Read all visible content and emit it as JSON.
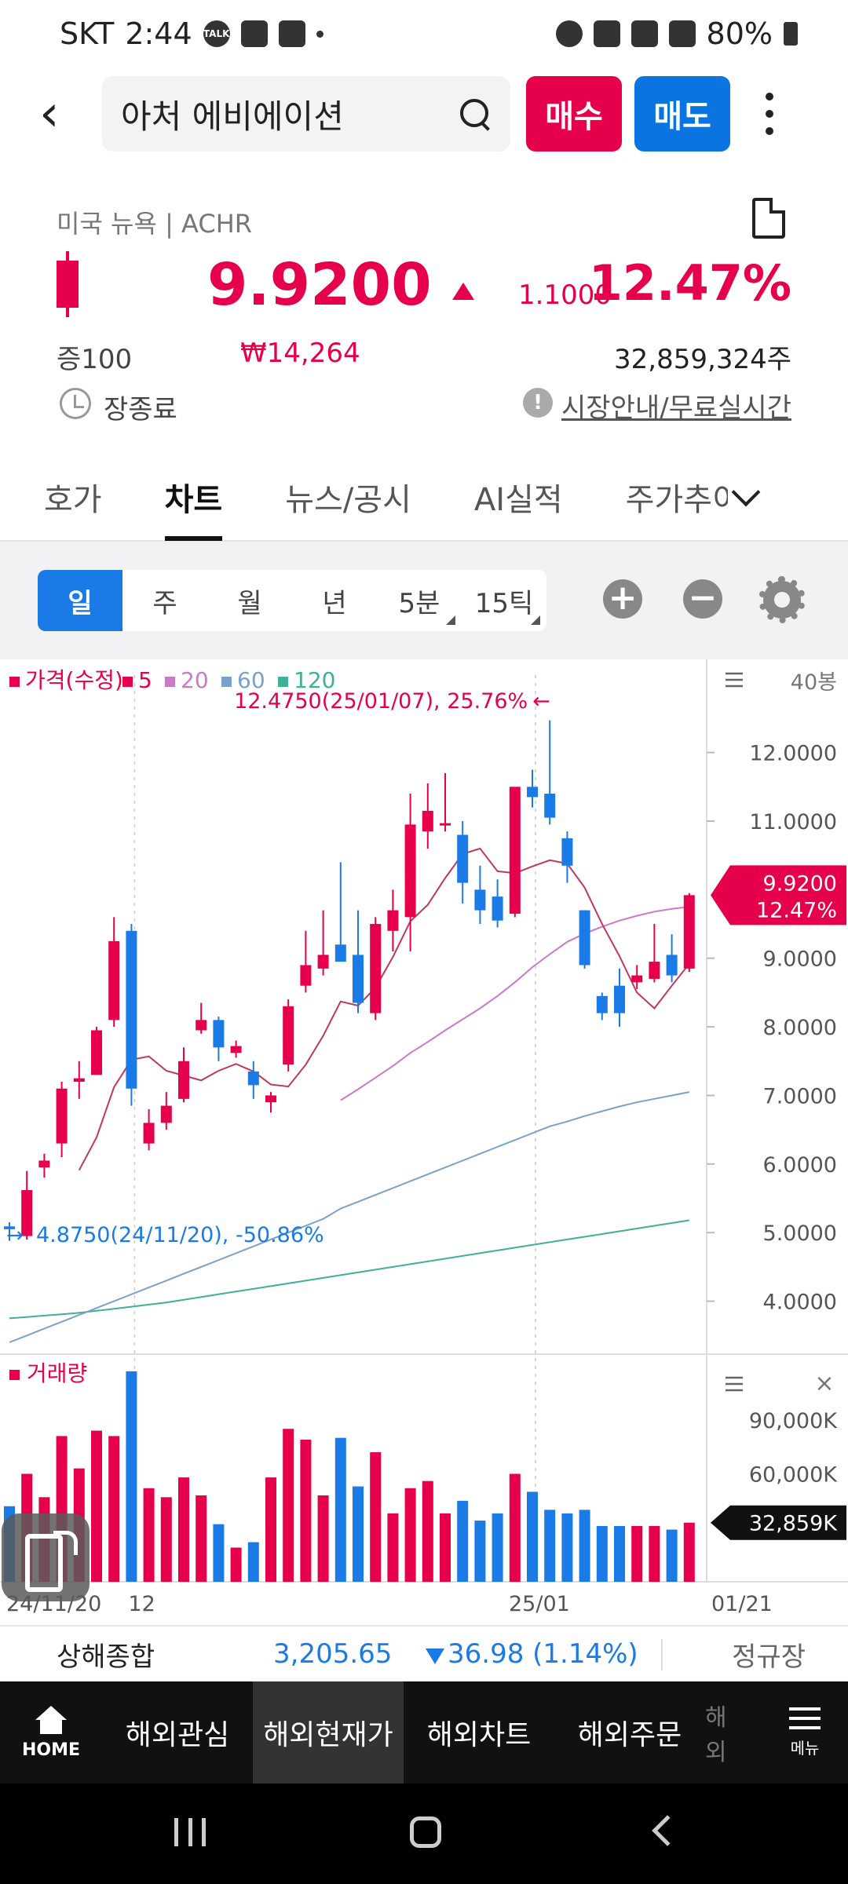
{
  "status_bar": {
    "carrier": "SKT",
    "time": "2:44",
    "talk_badge": "TALK",
    "battery": "80%"
  },
  "header": {
    "search_value": "아처 에비에이션",
    "buy_label": "매수",
    "sell_label": "매도"
  },
  "quote": {
    "exchange": "미국 뉴욕 | ACHR",
    "price": "9.9200",
    "change": "1.1000",
    "change_pct": "12.47%",
    "margin": "증100",
    "price_krw": "₩14,264",
    "volume": "32,859,324주",
    "session": "장종료",
    "info_link": "시장안내/무료실시간",
    "up_color": "#e6004c",
    "down_color": "#1a7be6"
  },
  "tabs": [
    {
      "label": "호가"
    },
    {
      "label": "차트",
      "active": true
    },
    {
      "label": "뉴스/공시"
    },
    {
      "label": "AI실적"
    },
    {
      "label": "주가추이"
    }
  ],
  "periods": [
    {
      "label": "일",
      "active": true
    },
    {
      "label": "주"
    },
    {
      "label": "월"
    },
    {
      "label": "년"
    },
    {
      "label": "5분"
    },
    {
      "label": "15틱"
    }
  ],
  "zoom": {
    "in": "+",
    "out": "−"
  },
  "chart_legend": {
    "price_label": "가격(수정)",
    "ma5": "5",
    "ma20": "20",
    "ma60": "60",
    "ma120": "120",
    "bars_label": "40봉",
    "volume_label": "거래량"
  },
  "chart_annotations": {
    "high": "12.4750(25/01/07), 25.76%",
    "low": "4.8750(24/11/20), -50.86%",
    "current_price": "9.9200",
    "current_pct": "12.47%",
    "current_volume": "32,859K"
  },
  "chart_data": {
    "type": "candlestick",
    "title": "",
    "price_ticks": [
      12,
      11,
      9,
      8,
      7,
      6,
      5,
      4
    ],
    "price_tick_labels": [
      "12.0000",
      "11.0000",
      "9.0000",
      "8.0000",
      "7.0000",
      "6.0000",
      "5.0000",
      "4.0000"
    ],
    "price_range": [
      3.4,
      12.9
    ],
    "volume_ticks": [
      90000,
      60000
    ],
    "volume_tick_labels": [
      "90,000K",
      "60,000K"
    ],
    "volume_range": [
      0,
      120000
    ],
    "x_labels": [
      "24/11/20",
      "12",
      "25/01",
      "01/21"
    ],
    "candles": [
      {
        "o": 5.09,
        "h": 5.15,
        "l": 4.88,
        "c": 5.05,
        "v": 42000
      },
      {
        "o": 4.95,
        "h": 5.9,
        "l": 4.9,
        "c": 5.62,
        "v": 60000
      },
      {
        "o": 5.95,
        "h": 6.15,
        "l": 5.8,
        "c": 6.05,
        "v": 47000
      },
      {
        "o": 6.3,
        "h": 7.2,
        "l": 6.1,
        "c": 7.1,
        "v": 81000
      },
      {
        "o": 7.2,
        "h": 7.5,
        "l": 6.95,
        "c": 7.25,
        "v": 63000
      },
      {
        "o": 7.3,
        "h": 8.0,
        "l": 7.3,
        "c": 7.95,
        "v": 84000
      },
      {
        "o": 8.1,
        "h": 9.6,
        "l": 8.0,
        "c": 9.25,
        "v": 81000
      },
      {
        "o": 9.4,
        "h": 9.5,
        "l": 6.85,
        "c": 7.1,
        "v": 117000
      },
      {
        "o": 6.3,
        "h": 6.8,
        "l": 6.2,
        "c": 6.6,
        "v": 52000
      },
      {
        "o": 6.6,
        "h": 7.05,
        "l": 6.5,
        "c": 6.85,
        "v": 47000
      },
      {
        "o": 6.95,
        "h": 7.7,
        "l": 6.9,
        "c": 7.5,
        "v": 58000
      },
      {
        "o": 7.95,
        "h": 8.35,
        "l": 7.9,
        "c": 8.1,
        "v": 48000
      },
      {
        "o": 8.1,
        "h": 8.15,
        "l": 7.5,
        "c": 7.7,
        "v": 32000
      },
      {
        "o": 7.62,
        "h": 7.8,
        "l": 7.55,
        "c": 7.72,
        "v": 19000
      },
      {
        "o": 7.35,
        "h": 7.5,
        "l": 6.95,
        "c": 7.15,
        "v": 22000
      },
      {
        "o": 6.9,
        "h": 7.05,
        "l": 6.75,
        "c": 7.0,
        "v": 58000
      },
      {
        "o": 7.45,
        "h": 8.4,
        "l": 7.35,
        "c": 8.3,
        "v": 85000
      },
      {
        "o": 8.6,
        "h": 9.4,
        "l": 8.5,
        "c": 8.9,
        "v": 79000
      },
      {
        "o": 8.85,
        "h": 9.7,
        "l": 8.75,
        "c": 9.05,
        "v": 48000
      },
      {
        "o": 9.2,
        "h": 10.4,
        "l": 8.95,
        "c": 8.95,
        "v": 80000
      },
      {
        "o": 9.05,
        "h": 9.7,
        "l": 8.2,
        "c": 8.35,
        "v": 53000
      },
      {
        "o": 8.2,
        "h": 9.6,
        "l": 8.1,
        "c": 9.5,
        "v": 72000
      },
      {
        "o": 9.4,
        "h": 10.0,
        "l": 9.1,
        "c": 9.7,
        "v": 38000
      },
      {
        "o": 9.6,
        "h": 11.4,
        "l": 9.1,
        "c": 10.95,
        "v": 52000
      },
      {
        "o": 10.85,
        "h": 11.55,
        "l": 10.6,
        "c": 11.15,
        "v": 56000
      },
      {
        "o": 10.95,
        "h": 11.7,
        "l": 10.85,
        "c": 10.97,
        "v": 38000
      },
      {
        "o": 10.8,
        "h": 11.0,
        "l": 9.8,
        "c": 10.1,
        "v": 45000
      },
      {
        "o": 10.0,
        "h": 10.35,
        "l": 9.5,
        "c": 9.7,
        "v": 34000
      },
      {
        "o": 9.9,
        "h": 10.15,
        "l": 9.45,
        "c": 9.55,
        "v": 38000
      },
      {
        "o": 9.65,
        "h": 11.45,
        "l": 9.6,
        "c": 11.5,
        "v": 60000
      },
      {
        "o": 11.5,
        "h": 11.75,
        "l": 11.2,
        "c": 11.35,
        "v": 50000
      },
      {
        "o": 11.4,
        "h": 12.47,
        "l": 10.95,
        "c": 11.05,
        "v": 40000
      },
      {
        "o": 10.75,
        "h": 10.85,
        "l": 10.1,
        "c": 10.35,
        "v": 38000
      },
      {
        "o": 9.7,
        "h": 9.7,
        "l": 8.85,
        "c": 8.9,
        "v": 40000
      },
      {
        "o": 8.45,
        "h": 8.5,
        "l": 8.1,
        "c": 8.2,
        "v": 31000
      },
      {
        "o": 8.6,
        "h": 8.85,
        "l": 8.0,
        "c": 8.2,
        "v": 31000
      },
      {
        "o": 8.65,
        "h": 8.9,
        "l": 8.55,
        "c": 8.75,
        "v": 31000
      },
      {
        "o": 8.7,
        "h": 9.5,
        "l": 8.65,
        "c": 8.95,
        "v": 31000
      },
      {
        "o": 9.05,
        "h": 9.35,
        "l": 8.65,
        "c": 8.75,
        "v": 29000
      },
      {
        "o": 8.85,
        "h": 9.95,
        "l": 8.8,
        "c": 9.92,
        "v": 32859
      }
    ],
    "ma5": [
      null,
      null,
      null,
      null,
      5.91,
      6.39,
      7.12,
      7.52,
      7.57,
      7.36,
      7.29,
      7.22,
      7.36,
      7.46,
      7.35,
      7.16,
      7.13,
      7.45,
      7.87,
      8.37,
      8.31,
      8.57,
      9.02,
      9.54,
      9.78,
      10.17,
      10.52,
      10.6,
      10.27,
      10.24,
      10.34,
      10.43,
      10.38,
      10.03,
      9.5,
      9.03,
      8.5,
      8.27,
      8.6,
      8.92
    ],
    "ma20": [
      null,
      null,
      null,
      null,
      null,
      null,
      null,
      null,
      null,
      null,
      null,
      null,
      null,
      null,
      null,
      null,
      null,
      null,
      null,
      6.93,
      7.09,
      7.26,
      7.43,
      7.62,
      7.78,
      7.95,
      8.11,
      8.27,
      8.45,
      8.65,
      8.87,
      9.06,
      9.24,
      9.36,
      9.46,
      9.55,
      9.62,
      9.68,
      9.72,
      9.75
    ],
    "ma60": [
      3.4,
      3.5,
      3.6,
      3.7,
      3.8,
      3.9,
      4.0,
      4.1,
      4.2,
      4.3,
      4.4,
      4.5,
      4.6,
      4.7,
      4.8,
      4.9,
      5.0,
      5.1,
      5.2,
      5.35,
      5.45,
      5.55,
      5.65,
      5.75,
      5.85,
      5.95,
      6.05,
      6.15,
      6.25,
      6.35,
      6.45,
      6.55,
      6.62,
      6.7,
      6.77,
      6.84,
      6.9,
      6.95,
      7.0,
      7.05
    ],
    "ma120": [
      3.75,
      3.77,
      3.79,
      3.81,
      3.83,
      3.86,
      3.89,
      3.92,
      3.95,
      3.98,
      4.02,
      4.06,
      4.1,
      4.14,
      4.18,
      4.22,
      4.26,
      4.3,
      4.34,
      4.38,
      4.42,
      4.46,
      4.5,
      4.54,
      4.58,
      4.62,
      4.66,
      4.7,
      4.74,
      4.78,
      4.82,
      4.86,
      4.9,
      4.94,
      4.98,
      5.02,
      5.06,
      5.1,
      5.14,
      5.18
    ]
  },
  "index_bar": {
    "name": "상해종합",
    "value": "3,205.65",
    "change": "36.98 (1.14%)",
    "market": "정규장"
  },
  "bottom_nav": {
    "home": "HOME",
    "items": [
      "해외관심",
      "해외현재가",
      "해외차트",
      "해외주문"
    ],
    "more": "해외",
    "menu": "메뉴"
  }
}
